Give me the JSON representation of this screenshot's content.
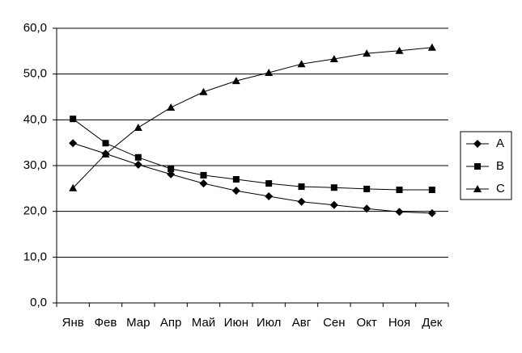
{
  "chart_data": {
    "type": "line",
    "categories": [
      "Янв",
      "Фев",
      "Мар",
      "Апр",
      "Май",
      "Июн",
      "Июл",
      "Авг",
      "Сен",
      "Окт",
      "Ноя",
      "Дек"
    ],
    "series": [
      {
        "name": "A",
        "color": "#000000",
        "marker": "diamond",
        "values": [
          34.9,
          32.6,
          30.2,
          28.1,
          26.1,
          24.5,
          23.3,
          22.1,
          21.4,
          20.6,
          19.9,
          19.6
        ]
      },
      {
        "name": "B",
        "color": "#000000",
        "marker": "square",
        "values": [
          40.2,
          34.9,
          31.8,
          29.3,
          27.9,
          27.0,
          26.1,
          25.4,
          25.2,
          24.9,
          24.7,
          24.7
        ]
      },
      {
        "name": "C",
        "color": "#000000",
        "marker": "triangle",
        "values": [
          25.1,
          32.5,
          38.3,
          42.7,
          46.1,
          48.5,
          50.3,
          52.2,
          53.3,
          54.5,
          55.1,
          55.8
        ]
      }
    ],
    "ylim": [
      0,
      60
    ],
    "yticks": [
      {
        "value": 0,
        "label": "0,0"
      },
      {
        "value": 10,
        "label": "10,0"
      },
      {
        "value": 20,
        "label": "20,0"
      },
      {
        "value": 30,
        "label": "30,0"
      },
      {
        "value": 40,
        "label": "40,0"
      },
      {
        "value": 50,
        "label": "50,0"
      },
      {
        "value": 60,
        "label": "60,0"
      }
    ],
    "grid": true,
    "legend": "right"
  }
}
